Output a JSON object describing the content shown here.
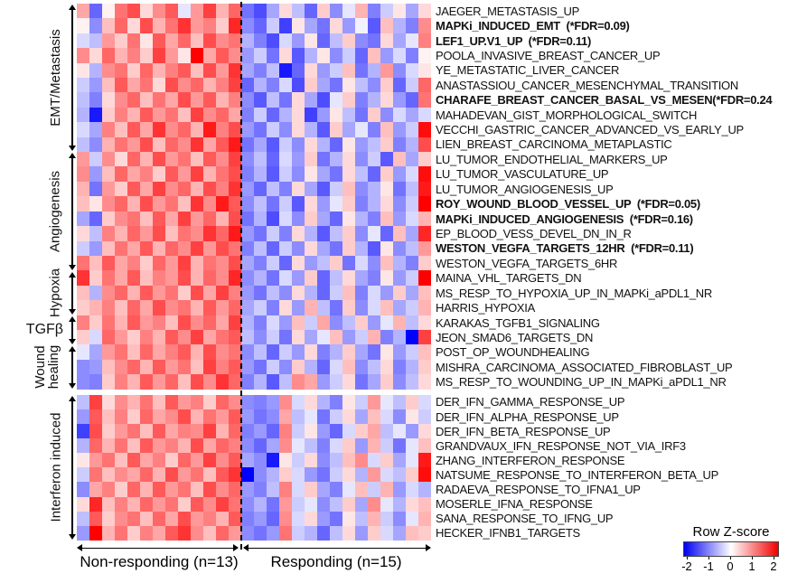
{
  "groups": {
    "non_responding": {
      "label": "Non-responding (n=13)",
      "n_cols": 13
    },
    "responding": {
      "label": "Responding (n=15)",
      "n_cols": 15
    }
  },
  "legend": {
    "title": "Row Z-score",
    "ticks": [
      "-2",
      "-1",
      "0",
      "1",
      "2"
    ],
    "min_color": "#0000f2",
    "mid_color": "#ffffff",
    "max_color": "#f20000"
  },
  "categories": [
    {
      "label": "EMT/Metastasis",
      "row_start": 1,
      "row_end": 10,
      "rotated": true
    },
    {
      "label": "Angiogenesis",
      "row_start": 11,
      "row_end": 18,
      "rotated": true
    },
    {
      "label": "Hypoxia",
      "row_start": 19,
      "row_end": 21,
      "rotated": true
    },
    {
      "label": "TGFβ",
      "row_start": 22,
      "row_end": 23,
      "rotated": false
    },
    {
      "label": "Wound healing",
      "row_start": 24,
      "row_end": 26,
      "rotated": true,
      "two_line": true
    },
    {
      "label": "Interferon induced",
      "row_start": 27,
      "row_end": 36,
      "rotated": true
    }
  ],
  "chart_data": {
    "type": "heatmap",
    "colormap": "blue-white-red",
    "zlim": [
      -2,
      2
    ],
    "legend_title": "Row Z-score",
    "col_groups": [
      {
        "name": "Non-responding (n=13)",
        "cols": 13
      },
      {
        "name": "Responding (n=15)",
        "cols": 15
      }
    ],
    "rows": [
      {
        "label": "JAEGER_METASTASIS_UP",
        "bold": false
      },
      {
        "label": "MAPKi_INDUCED_EMT  (*FDR=0.09)",
        "bold": true
      },
      {
        "label": "LEF1_UP.V1_UP  (*FDR=0.11)",
        "bold": true
      },
      {
        "label": "POOLA_INVASIVE_BREAST_CANCER_UP",
        "bold": false
      },
      {
        "label": "YE_METASTATIC_LIVER_CANCER",
        "bold": false
      },
      {
        "label": "ANASTASSIOU_CANCER_MESENCHYMAL_TRANSITION",
        "bold": false
      },
      {
        "label": "CHARAFE_BREAST_CANCER_BASAL_VS_MESEN(*FDR=0.24",
        "bold": true
      },
      {
        "label": "MAHADEVAN_GIST_MORPHOLOGICAL_SWITCH",
        "bold": false
      },
      {
        "label": "VECCHI_GASTRIC_CANCER_ADVANCED_VS_EARLY_UP",
        "bold": false
      },
      {
        "label": "LIEN_BREAST_CARCINOMA_METAPLASTIC",
        "bold": false
      },
      {
        "label": "LU_TUMOR_ENDOTHELIAL_MARKERS_UP",
        "bold": false
      },
      {
        "label": "LU_TUMOR_VASCULATURE_UP",
        "bold": false
      },
      {
        "label": "LU_TUMOR_ANGIOGENESIS_UP",
        "bold": false
      },
      {
        "label": "ROY_WOUND_BLOOD_VESSEL_UP  (*FDR=0.05)",
        "bold": true
      },
      {
        "label": "MAPKi_INDUCED_ANGIOGENESIS  (*FDR=0.16)",
        "bold": true
      },
      {
        "label": "EP_BLOOD_VESS_DEVEL_DN_IN_R",
        "bold": false
      },
      {
        "label": "WESTON_VEGFA_TARGETS_12HR  (*FDR=0.11)",
        "bold": true
      },
      {
        "label": "WESTON_VEGFA_TARGETS_6HR",
        "bold": false
      },
      {
        "label": "MAINA_VHL_TARGETS_DN",
        "bold": false
      },
      {
        "label": "MS_RESP_TO_HYPOXIA_UP_IN_MAPKi_aPDL1_NR",
        "bold": false
      },
      {
        "label": "HARRIS_HYPOXIA",
        "bold": false
      },
      {
        "label": "KARAKAS_TGFB1_SIGNALING",
        "bold": false
      },
      {
        "label": "JEON_SMAD6_TARGETS_DN",
        "bold": false
      },
      {
        "label": "POST_OP_WOUNDHEALING",
        "bold": false
      },
      {
        "label": "MISHRA_CARCINOMA_ASSOCIATED_FIBROBLAST_UP",
        "bold": false
      },
      {
        "label": "MS_RESP_TO_WOUNDING_UP_IN_MAPKi_aPDL1_NR",
        "bold": false
      },
      {
        "label": "DER_IFN_GAMMA_RESPONSE_UP",
        "bold": false
      },
      {
        "label": "DER_IFN_ALPHA_RESPONSE_UP",
        "bold": false
      },
      {
        "label": "DER_IFN_BETA_RESPONSE_UP",
        "bold": false
      },
      {
        "label": "GRANDVAUX_IFN_RESPONSE_NOT_VIA_IRF3",
        "bold": false
      },
      {
        "label": "ZHANG_INTERFERON_RESPONSE",
        "bold": false
      },
      {
        "label": "NATSUME_RESPONSE_TO_INTERFERON_BETA_UP",
        "bold": false
      },
      {
        "label": "RADAEVA_RESPONSE_TO_IFNA1_UP",
        "bold": false
      },
      {
        "label": "MOSERLE_IFNA_RESPONSE",
        "bold": false
      },
      {
        "label": "SANA_RESPONSE_TO_IFNG_UP",
        "bold": false
      },
      {
        "label": "HECKER_IFNB1_TARGETS",
        "bold": false
      }
    ],
    "matrix": [
      [
        0.7,
        -1.2,
        0.1,
        1.1,
        1.4,
        0.3,
        0.9,
        1.3,
        -0.2,
        0.8,
        1.5,
        0.6,
        1.2,
        -1.1,
        -1.4,
        -0.7,
        0.3,
        -0.5,
        -1.2,
        0.4,
        -0.9,
        -0.2,
        0.6,
        -1.0,
        -0.4,
        0.2,
        -0.7,
        0.3
      ],
      [
        0.1,
        -0.9,
        0.5,
        1.2,
        0.3,
        1.4,
        0.6,
        1.1,
        1.6,
        0.8,
        1.0,
        0.4,
        1.7,
        -0.9,
        -1.2,
        -0.4,
        -1.5,
        0.2,
        -0.7,
        -1.1,
        0.3,
        -0.8,
        -0.1,
        -1.3,
        0.5,
        -0.6,
        -1.0,
        0.9
      ],
      [
        -0.3,
        -0.5,
        0.8,
        0.4,
        1.1,
        0.2,
        1.3,
        0.7,
        1.2,
        0.5,
        1.4,
        0.9,
        1.1,
        -0.6,
        -1.0,
        -1.4,
        -0.3,
        -0.8,
        0.2,
        -1.2,
        -0.5,
        0.4,
        -0.9,
        -1.1,
        0.3,
        -0.7,
        -0.2,
        1.0
      ],
      [
        0.9,
        0.3,
        1.2,
        0.6,
        1.0,
        0.4,
        1.5,
        0.8,
        0.2,
        2.0,
        0.7,
        1.3,
        0.9,
        -0.8,
        -0.4,
        -1.1,
        0.3,
        -1.3,
        -0.6,
        0.2,
        -0.9,
        -0.4,
        -1.2,
        0.5,
        -0.8,
        -0.3,
        -1.0,
        0.1
      ],
      [
        0.2,
        -0.6,
        0.9,
        1.1,
        0.4,
        1.2,
        0.6,
        1.0,
        1.3,
        0.5,
        1.4,
        0.8,
        1.6,
        -0.7,
        -1.0,
        -0.5,
        -1.8,
        -1.2,
        0.3,
        -0.8,
        -0.4,
        0.5,
        -1.1,
        -0.6,
        0.8,
        -0.9,
        -0.3,
        0.2
      ],
      [
        -0.4,
        -0.8,
        0.5,
        1.3,
        0.7,
        1.1,
        0.3,
        1.4,
        0.9,
        1.2,
        0.6,
        1.0,
        1.5,
        -1.2,
        -0.6,
        -1.0,
        -0.3,
        -1.4,
        0.4,
        -0.7,
        -1.1,
        0.2,
        -0.5,
        -0.9,
        0.4,
        -1.2,
        -0.4,
        1.2
      ],
      [
        -0.5,
        -1.0,
        0.3,
        0.9,
        1.2,
        0.5,
        1.1,
        0.7,
        1.4,
        0.8,
        1.3,
        0.6,
        1.0,
        -0.9,
        -1.3,
        -0.5,
        -1.1,
        0.3,
        -0.7,
        -1.4,
        -0.2,
        0.4,
        -1.0,
        -0.6,
        0.3,
        -0.8,
        -1.2,
        1.1
      ],
      [
        -0.6,
        -1.8,
        0.4,
        1.0,
        0.6,
        1.3,
        0.8,
        1.1,
        0.5,
        1.5,
        0.9,
        1.2,
        0.7,
        -1.0,
        -0.4,
        -1.2,
        -0.6,
        0.3,
        -1.5,
        -0.8,
        0.2,
        -0.5,
        -1.1,
        0.4,
        -0.9,
        -0.3,
        -0.7,
        -0.3
      ],
      [
        -0.3,
        -0.7,
        1.0,
        0.5,
        1.3,
        0.7,
        1.6,
        0.9,
        1.2,
        0.6,
        1.8,
        1.0,
        1.4,
        -0.8,
        -1.1,
        -0.4,
        -0.9,
        0.3,
        -0.6,
        -1.3,
        0.4,
        -0.7,
        -0.2,
        -1.0,
        0.5,
        -0.8,
        -0.4,
        1.9
      ],
      [
        -0.5,
        -0.9,
        0.6,
        1.1,
        0.8,
        1.4,
        0.5,
        1.2,
        0.9,
        1.6,
        0.7,
        1.3,
        1.8,
        -1.1,
        -0.7,
        -1.3,
        -0.4,
        -0.9,
        0.3,
        -0.6,
        -1.2,
        0.2,
        -0.8,
        -0.5,
        0.4,
        -1.0,
        -0.6,
        1.4
      ],
      [
        0.8,
        -0.4,
        0.9,
        0.3,
        1.2,
        0.6,
        1.4,
        0.8,
        1.1,
        0.5,
        1.3,
        0.9,
        1.5,
        -0.9,
        -0.5,
        -1.2,
        -0.3,
        -0.8,
        0.4,
        -1.1,
        -0.6,
        0.3,
        -0.9,
        -0.4,
        -1.3,
        0.5,
        -0.7,
        0.4
      ],
      [
        0.9,
        -0.8,
        0.5,
        1.2,
        0.7,
        1.0,
        0.4,
        1.3,
        0.8,
        1.5,
        0.6,
        1.1,
        1.4,
        -1.0,
        -0.6,
        -1.3,
        -0.4,
        -0.9,
        0.2,
        -0.7,
        -1.1,
        0.3,
        -0.5,
        -1.2,
        0.4,
        -0.8,
        -0.3,
        1.9
      ],
      [
        0.6,
        -1.1,
        0.8,
        0.4,
        1.3,
        0.7,
        1.5,
        0.9,
        1.2,
        0.6,
        1.4,
        1.0,
        1.6,
        -0.8,
        -1.2,
        -0.5,
        -1.0,
        0.3,
        -0.7,
        -1.3,
        -0.4,
        0.5,
        -0.9,
        -0.6,
        0.2,
        -1.1,
        -0.5,
        1.8
      ],
      [
        0.5,
        0.2,
        0.9,
        1.2,
        0.6,
        1.4,
        0.8,
        1.1,
        0.5,
        1.6,
        0.9,
        1.8,
        1.3,
        -0.9,
        -0.5,
        -1.1,
        -0.4,
        -1.3,
        0.3,
        -0.8,
        -0.2,
        0.4,
        -1.0,
        -0.6,
        0.3,
        -0.9,
        -0.4,
        2.0
      ],
      [
        -0.7,
        -1.2,
        0.4,
        0.9,
        1.1,
        0.5,
        1.3,
        0.7,
        1.5,
        0.8,
        1.2,
        0.6,
        1.4,
        -1.1,
        -0.6,
        -1.4,
        -0.3,
        -0.9,
        0.4,
        -0.7,
        -1.2,
        0.2,
        -0.6,
        -1.0,
        0.5,
        -0.8,
        -0.3,
        0.6
      ],
      [
        0.3,
        -0.5,
        1.0,
        0.6,
        1.2,
        0.8,
        1.4,
        0.5,
        1.1,
        0.9,
        1.6,
        1.2,
        1.8,
        -0.8,
        -1.1,
        -0.4,
        -1.0,
        0.3,
        -0.6,
        -1.3,
        -0.5,
        0.4,
        -0.9,
        -0.2,
        -1.2,
        0.5,
        -0.7,
        1.7
      ],
      [
        -0.4,
        -0.8,
        0.5,
        1.1,
        0.7,
        1.3,
        0.6,
        1.2,
        0.9,
        1.5,
        0.8,
        1.4,
        1.1,
        -1.0,
        -0.5,
        -1.2,
        -0.4,
        -0.9,
        0.3,
        -0.7,
        -1.1,
        0.4,
        -0.6,
        -1.3,
        0.2,
        -0.9,
        -0.5,
        0.8
      ],
      [
        1.1,
        0.5,
        1.3,
        0.7,
        1.0,
        0.4,
        1.2,
        0.8,
        1.5,
        0.6,
        1.1,
        0.9,
        1.4,
        -0.7,
        -1.0,
        -0.4,
        -1.2,
        0.3,
        -0.8,
        -0.5,
        0.4,
        -1.1,
        -0.3,
        -0.9,
        0.5,
        -0.6,
        -1.0,
        0.4
      ],
      [
        1.6,
        0.4,
        1.1,
        0.7,
        1.3,
        0.5,
        1.0,
        0.8,
        1.4,
        0.6,
        1.2,
        0.9,
        1.7,
        -0.9,
        -0.6,
        -1.1,
        -0.3,
        -0.8,
        0.4,
        -1.2,
        -0.5,
        0.3,
        -0.7,
        -1.0,
        0.2,
        -0.8,
        -0.4,
        2.0
      ],
      [
        0.5,
        -0.6,
        0.9,
        1.2,
        0.6,
        1.3,
        0.8,
        1.1,
        0.4,
        1.4,
        0.7,
        1.5,
        1.0,
        -0.8,
        -1.1,
        -0.5,
        -0.9,
        0.3,
        -0.6,
        -1.2,
        -0.4,
        0.5,
        -1.0,
        -0.3,
        -0.8,
        0.4,
        -0.7,
        0.5
      ],
      [
        0.4,
        0.6,
        1.0,
        0.5,
        1.2,
        0.7,
        1.4,
        0.9,
        1.1,
        0.6,
        1.3,
        0.8,
        1.2,
        -0.7,
        -0.4,
        -1.0,
        0.3,
        -0.8,
        0.6,
        -0.5,
        -1.1,
        0.4,
        -0.9,
        -0.3,
        0.5,
        -0.7,
        -0.4,
        0.6
      ],
      [
        1.0,
        0.4,
        1.1,
        0.6,
        1.3,
        0.8,
        1.0,
        0.5,
        1.4,
        0.9,
        1.2,
        0.7,
        1.5,
        -0.6,
        -1.0,
        -0.3,
        -0.8,
        0.5,
        -0.4,
        0.7,
        -0.9,
        -0.5,
        0.4,
        -0.8,
        -0.2,
        0.6,
        -0.5,
        0.3
      ],
      [
        0.4,
        -0.3,
        1.2,
        0.8,
        0.4,
        1.0,
        0.6,
        1.3,
        0.9,
        1.5,
        0.7,
        1.1,
        1.3,
        -0.5,
        -0.9,
        -0.4,
        -1.1,
        0.3,
        -0.7,
        -0.2,
        0.5,
        -0.8,
        -0.4,
        0.6,
        -1.0,
        -0.6,
        -2.2,
        1.5
      ],
      [
        -0.2,
        -0.7,
        0.8,
        1.1,
        0.5,
        1.2,
        0.7,
        1.0,
        1.3,
        0.6,
        1.4,
        0.9,
        1.1,
        -0.9,
        -0.5,
        -1.2,
        -0.4,
        -0.8,
        0.3,
        -1.0,
        -0.6,
        0.4,
        -0.7,
        -1.1,
        0.2,
        -0.8,
        -0.4,
        0.5
      ],
      [
        -0.9,
        -0.8,
        0.5,
        0.9,
        1.2,
        0.6,
        1.3,
        0.8,
        1.1,
        0.5,
        1.5,
        1.0,
        1.3,
        -0.8,
        -1.1,
        -0.4,
        -0.9,
        0.4,
        -0.6,
        -1.2,
        -0.3,
        0.5,
        -0.9,
        -0.5,
        0.3,
        -1.0,
        -0.6,
        0.4
      ],
      [
        -0.9,
        -1.0,
        0.4,
        1.0,
        0.6,
        1.3,
        0.8,
        1.2,
        0.5,
        1.4,
        0.9,
        1.6,
        1.2,
        -1.0,
        -0.6,
        -1.3,
        -0.5,
        0.9,
        0.7,
        -0.8,
        -0.4,
        0.3,
        -1.1,
        -0.7,
        0.4,
        -0.9,
        -0.5,
        0.3
      ],
      [
        -0.5,
        1.5,
        0.3,
        0.9,
        0.6,
        1.1,
        0.5,
        1.3,
        0.8,
        1.0,
        0.4,
        1.2,
        0.9,
        -0.9,
        -1.0,
        -0.8,
        0.9,
        -0.3,
        0.3,
        -0.6,
        -1.0,
        0.2,
        -0.4,
        0.8,
        -0.2,
        -0.5,
        0.4,
        -0.3
      ],
      [
        -0.8,
        1.3,
        0.5,
        1.0,
        0.4,
        1.2,
        0.7,
        0.9,
        1.4,
        0.6,
        1.1,
        0.8,
        1.3,
        -0.8,
        -1.1,
        -0.9,
        0.7,
        -0.5,
        -0.2,
        -1.1,
        -0.4,
        0.3,
        -0.7,
        0.5,
        -0.3,
        -0.9,
        0.2,
        -0.4
      ],
      [
        -1.5,
        1.4,
        0.4,
        0.8,
        1.1,
        0.5,
        1.3,
        0.7,
        1.0,
        0.9,
        1.5,
        0.6,
        1.2,
        -1.0,
        -0.8,
        -1.2,
        1.0,
        -0.4,
        0.2,
        -0.8,
        -1.2,
        -0.3,
        0.4,
        0.7,
        -0.5,
        -0.2,
        -0.8,
        0.3
      ],
      [
        -0.6,
        1.2,
        0.6,
        1.1,
        0.5,
        1.3,
        0.8,
        1.0,
        0.6,
        1.4,
        0.7,
        1.2,
        1.0,
        -0.9,
        -1.2,
        -0.7,
        0.9,
        -0.2,
        -0.5,
        -1.0,
        -0.3,
        0.4,
        -0.8,
        0.6,
        -0.4,
        -1.1,
        -0.2,
        0.5
      ],
      [
        0.2,
        0.8,
        1.1,
        0.5,
        1.3,
        0.7,
        1.0,
        0.4,
        1.2,
        0.8,
        1.5,
        0.9,
        1.3,
        -0.7,
        -0.9,
        -1.8,
        0.2,
        -0.4,
        0.3,
        -0.9,
        -0.5,
        0.5,
        0.9,
        -0.3,
        0.4,
        -0.7,
        -0.2,
        1.8
      ],
      [
        -0.4,
        1.1,
        0.5,
        0.9,
        0.7,
        1.2,
        0.6,
        1.4,
        0.8,
        1.1,
        0.5,
        1.3,
        1.6,
        -2.2,
        -0.9,
        -0.6,
        0.4,
        -0.3,
        -0.8,
        -1.1,
        -0.4,
        0.3,
        -0.6,
        0.8,
        -0.3,
        -0.5,
        0.4,
        1.9
      ],
      [
        -0.9,
        0.7,
        1.0,
        0.4,
        1.2,
        0.6,
        1.3,
        0.8,
        1.1,
        0.5,
        1.4,
        0.9,
        1.2,
        -0.8,
        -1.0,
        -0.5,
        1.0,
        -0.3,
        0.4,
        -0.7,
        -1.0,
        -0.2,
        0.5,
        -0.4,
        0.6,
        -0.8,
        -0.3,
        -0.6
      ],
      [
        0.3,
        1.7,
        0.5,
        1.0,
        0.6,
        1.2,
        0.8,
        1.1,
        0.4,
        1.3,
        0.9,
        1.5,
        1.1,
        -0.9,
        -0.6,
        -1.1,
        0.8,
        -0.4,
        -0.2,
        -0.9,
        -0.5,
        0.4,
        -0.7,
        0.9,
        -0.2,
        -0.6,
        0.3,
        0.5
      ],
      [
        -0.5,
        1.3,
        0.4,
        0.9,
        1.1,
        0.5,
        1.2,
        0.7,
        1.4,
        0.8,
        1.0,
        0.6,
        1.3,
        -1.0,
        -0.8,
        -1.2,
        0.9,
        -0.3,
        0.3,
        -0.8,
        -1.1,
        0.2,
        -0.5,
        0.6,
        -0.4,
        -0.9,
        -0.2,
        0.6
      ],
      [
        -0.8,
        2.0,
        0.6,
        1.1,
        0.4,
        1.0,
        0.7,
        1.3,
        1.6,
        0.9,
        0.5,
        1.2,
        0.8,
        -0.9,
        -1.1,
        -0.8,
        1.1,
        -0.4,
        -0.6,
        -1.2,
        -0.5,
        0.3,
        -0.8,
        0.4,
        -0.3,
        -0.7,
        0.5,
        0.4
      ]
    ]
  }
}
